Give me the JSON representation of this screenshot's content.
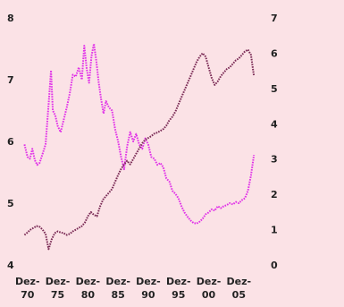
{
  "chart_data": {
    "type": "line",
    "title": "",
    "xlabel": "",
    "ylabel_left": "",
    "ylabel_right": "",
    "grid": false,
    "legend": "none",
    "background": "#fbe2e6",
    "x_ticks": [
      {
        "year": 1970,
        "line1": "Dez-",
        "line2": "70"
      },
      {
        "year": 1975,
        "line1": "Dez-",
        "line2": "75"
      },
      {
        "year": 1980,
        "line1": "Dez-",
        "line2": "80"
      },
      {
        "year": 1985,
        "line1": "Dez-",
        "line2": "85"
      },
      {
        "year": 1990,
        "line1": "Dez-",
        "line2": "90"
      },
      {
        "year": 1995,
        "line1": "Dez-",
        "line2": "95"
      },
      {
        "year": 2000,
        "line1": "Dez-",
        "line2": "00"
      },
      {
        "year": 2005,
        "line1": "Dez-",
        "line2": "05"
      }
    ],
    "x_range": [
      1969.0,
      2008.5
    ],
    "y_left": {
      "ticks": [
        "4",
        "5",
        "6",
        "7",
        "8"
      ],
      "range": [
        4,
        8
      ]
    },
    "y_right": {
      "ticks": [
        "0",
        "1",
        "2",
        "3",
        "4",
        "5",
        "6",
        "7"
      ],
      "range": [
        0,
        7
      ]
    },
    "series": [
      {
        "axis": "left",
        "color": "#e030e8",
        "style": "dotted",
        "points": [
          [
            1969.5,
            5.95
          ],
          [
            1970.0,
            5.75
          ],
          [
            1970.4,
            5.72
          ],
          [
            1970.8,
            5.88
          ],
          [
            1971.2,
            5.7
          ],
          [
            1971.6,
            5.62
          ],
          [
            1972.0,
            5.65
          ],
          [
            1972.5,
            5.8
          ],
          [
            1973.0,
            5.95
          ],
          [
            1973.5,
            6.6
          ],
          [
            1973.9,
            7.15
          ],
          [
            1974.2,
            6.5
          ],
          [
            1974.6,
            6.42
          ],
          [
            1975.0,
            6.25
          ],
          [
            1975.5,
            6.15
          ],
          [
            1976.0,
            6.35
          ],
          [
            1976.5,
            6.55
          ],
          [
            1977.0,
            6.78
          ],
          [
            1977.5,
            7.08
          ],
          [
            1978.0,
            7.05
          ],
          [
            1978.5,
            7.2
          ],
          [
            1979.0,
            7.0
          ],
          [
            1979.4,
            7.55
          ],
          [
            1979.8,
            7.18
          ],
          [
            1980.2,
            6.95
          ],
          [
            1980.6,
            7.38
          ],
          [
            1981.0,
            7.58
          ],
          [
            1981.4,
            7.3
          ],
          [
            1981.8,
            6.95
          ],
          [
            1982.2,
            6.68
          ],
          [
            1982.6,
            6.45
          ],
          [
            1983.0,
            6.65
          ],
          [
            1983.5,
            6.55
          ],
          [
            1984.0,
            6.5
          ],
          [
            1984.5,
            6.2
          ],
          [
            1985.0,
            6.0
          ],
          [
            1985.5,
            5.75
          ],
          [
            1986.0,
            5.55
          ],
          [
            1986.5,
            5.92
          ],
          [
            1987.0,
            6.15
          ],
          [
            1987.5,
            6.0
          ],
          [
            1988.0,
            6.12
          ],
          [
            1988.5,
            5.95
          ],
          [
            1989.0,
            5.88
          ],
          [
            1989.5,
            6.05
          ],
          [
            1990.0,
            5.95
          ],
          [
            1990.5,
            5.75
          ],
          [
            1991.0,
            5.72
          ],
          [
            1991.5,
            5.62
          ],
          [
            1992.0,
            5.65
          ],
          [
            1992.5,
            5.58
          ],
          [
            1993.0,
            5.4
          ],
          [
            1993.5,
            5.35
          ],
          [
            1994.0,
            5.2
          ],
          [
            1994.5,
            5.15
          ],
          [
            1995.0,
            5.08
          ],
          [
            1995.5,
            4.95
          ],
          [
            1996.0,
            4.85
          ],
          [
            1996.5,
            4.78
          ],
          [
            1997.0,
            4.72
          ],
          [
            1997.5,
            4.68
          ],
          [
            1998.0,
            4.67
          ],
          [
            1998.5,
            4.7
          ],
          [
            1999.0,
            4.75
          ],
          [
            1999.5,
            4.82
          ],
          [
            2000.0,
            4.85
          ],
          [
            2000.5,
            4.9
          ],
          [
            2001.0,
            4.88
          ],
          [
            2001.5,
            4.95
          ],
          [
            2002.0,
            4.92
          ],
          [
            2002.5,
            4.95
          ],
          [
            2003.0,
            4.97
          ],
          [
            2003.5,
            5.0
          ],
          [
            2004.0,
            4.98
          ],
          [
            2004.5,
            5.02
          ],
          [
            2005.0,
            5.0
          ],
          [
            2005.5,
            5.05
          ],
          [
            2006.0,
            5.08
          ],
          [
            2006.5,
            5.2
          ],
          [
            2007.0,
            5.45
          ],
          [
            2007.3,
            5.65
          ],
          [
            2007.5,
            5.78
          ]
        ]
      },
      {
        "axis": "right",
        "color": "#7a2a55",
        "style": "dotted",
        "points": [
          [
            1969.5,
            0.85
          ],
          [
            1970.0,
            0.92
          ],
          [
            1970.5,
            1.0
          ],
          [
            1971.0,
            1.05
          ],
          [
            1971.5,
            1.1
          ],
          [
            1972.0,
            1.08
          ],
          [
            1972.5,
            1.0
          ],
          [
            1973.0,
            0.88
          ],
          [
            1973.5,
            0.45
          ],
          [
            1974.0,
            0.72
          ],
          [
            1974.5,
            0.9
          ],
          [
            1975.0,
            0.95
          ],
          [
            1975.5,
            0.92
          ],
          [
            1976.0,
            0.9
          ],
          [
            1976.5,
            0.85
          ],
          [
            1977.0,
            0.88
          ],
          [
            1977.5,
            0.95
          ],
          [
            1978.0,
            1.0
          ],
          [
            1978.5,
            1.05
          ],
          [
            1979.0,
            1.1
          ],
          [
            1979.5,
            1.2
          ],
          [
            1980.0,
            1.38
          ],
          [
            1980.5,
            1.5
          ],
          [
            1981.0,
            1.42
          ],
          [
            1981.5,
            1.38
          ],
          [
            1982.0,
            1.65
          ],
          [
            1982.5,
            1.85
          ],
          [
            1983.0,
            1.95
          ],
          [
            1983.5,
            2.05
          ],
          [
            1984.0,
            2.15
          ],
          [
            1984.5,
            2.35
          ],
          [
            1985.0,
            2.55
          ],
          [
            1985.5,
            2.72
          ],
          [
            1986.0,
            2.85
          ],
          [
            1986.5,
            2.95
          ],
          [
            1987.0,
            2.85
          ],
          [
            1987.5,
            3.0
          ],
          [
            1988.0,
            3.15
          ],
          [
            1988.5,
            3.3
          ],
          [
            1989.0,
            3.45
          ],
          [
            1989.5,
            3.55
          ],
          [
            1990.0,
            3.6
          ],
          [
            1990.5,
            3.65
          ],
          [
            1991.0,
            3.72
          ],
          [
            1991.5,
            3.75
          ],
          [
            1992.0,
            3.8
          ],
          [
            1992.5,
            3.85
          ],
          [
            1993.0,
            3.95
          ],
          [
            1993.5,
            4.1
          ],
          [
            1994.0,
            4.2
          ],
          [
            1994.5,
            4.35
          ],
          [
            1995.0,
            4.55
          ],
          [
            1995.5,
            4.75
          ],
          [
            1996.0,
            4.95
          ],
          [
            1996.5,
            5.15
          ],
          [
            1997.0,
            5.35
          ],
          [
            1997.5,
            5.55
          ],
          [
            1998.0,
            5.75
          ],
          [
            1998.5,
            5.9
          ],
          [
            1999.0,
            6.0
          ],
          [
            1999.5,
            5.9
          ],
          [
            2000.0,
            5.6
          ],
          [
            2000.5,
            5.3
          ],
          [
            2001.0,
            5.1
          ],
          [
            2001.5,
            5.2
          ],
          [
            2002.0,
            5.35
          ],
          [
            2002.5,
            5.45
          ],
          [
            2003.0,
            5.55
          ],
          [
            2003.5,
            5.6
          ],
          [
            2004.0,
            5.7
          ],
          [
            2004.5,
            5.8
          ],
          [
            2005.0,
            5.85
          ],
          [
            2005.5,
            5.95
          ],
          [
            2006.0,
            6.05
          ],
          [
            2006.5,
            6.1
          ],
          [
            2007.0,
            5.95
          ],
          [
            2007.5,
            5.35
          ]
        ]
      }
    ]
  }
}
